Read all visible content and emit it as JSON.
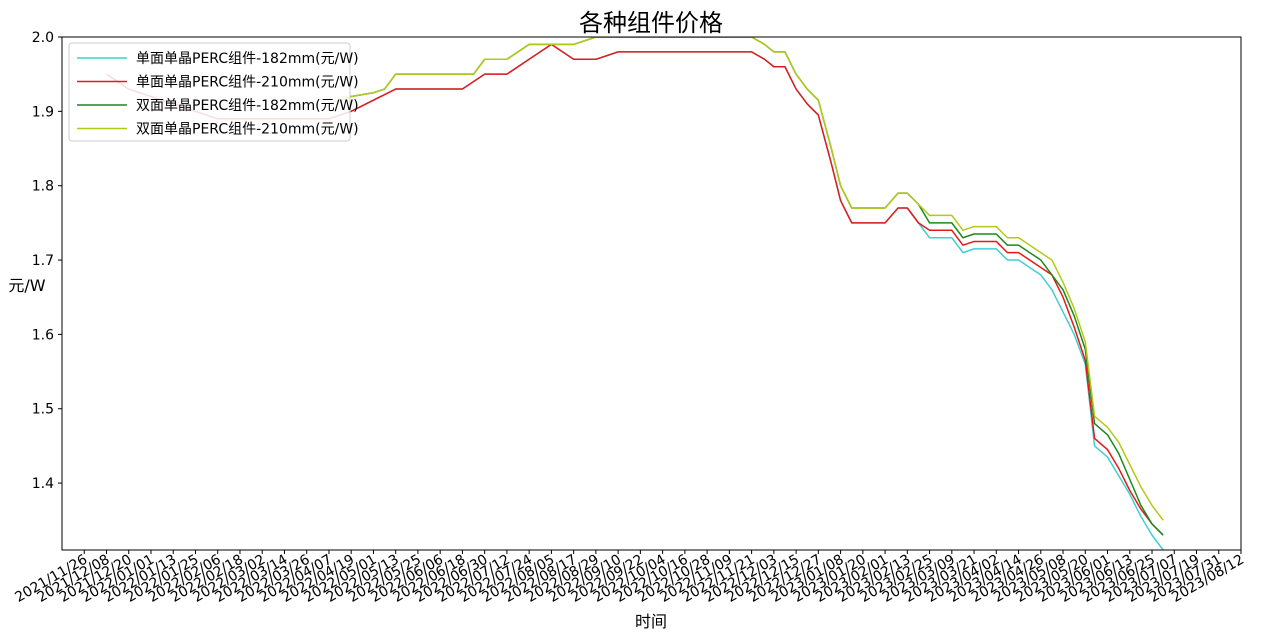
{
  "chart_data": {
    "type": "line",
    "title": "各种组件价格",
    "xlabel": "时间",
    "ylabel": "元/W",
    "ylim": [
      1.31,
      2.0
    ],
    "yticks": [
      1.4,
      1.5,
      1.6,
      1.7,
      1.8,
      1.9,
      2.0
    ],
    "ytick_labels": [
      "1.4",
      "1.5",
      "1.6",
      "1.7",
      "1.8",
      "1.9",
      "2.0"
    ],
    "xlim": [
      "2021-11-14",
      "2023-08-12"
    ],
    "xtick_labels": [
      "2021/11/26",
      "2021/12/08",
      "2021/12/20",
      "2022/01/01",
      "2022/01/13",
      "2022/01/25",
      "2022/02/06",
      "2022/02/18",
      "2022/03/02",
      "2022/03/14",
      "2022/03/26",
      "2022/04/07",
      "2022/04/19",
      "2022/05/01",
      "2022/05/13",
      "2022/05/25",
      "2022/06/06",
      "2022/06/18",
      "2022/06/30",
      "2022/07/12",
      "2022/07/24",
      "2022/08/05",
      "2022/08/17",
      "2022/08/29",
      "2022/09/10",
      "2022/09/22",
      "2022/10/04",
      "2022/10/16",
      "2022/10/28",
      "2022/11/09",
      "2022/11/21",
      "2022/12/03",
      "2022/12/15",
      "2022/12/27",
      "2023/01/08",
      "2023/01/20",
      "2023/02/01",
      "2023/02/13",
      "2023/02/25",
      "2023/03/09",
      "2023/03/21",
      "2023/04/02",
      "2023/04/14",
      "2023/04/26",
      "2023/05/08",
      "2023/05/20",
      "2023/06/01",
      "2023/06/13",
      "2023/06/25",
      "2023/07/07",
      "2023/07/19",
      "2023/07/31",
      "2023/08/12"
    ],
    "grid": false,
    "legend_position": "upper-left",
    "series": [
      {
        "name": "单面单晶PERC组件-182mm(元/W)",
        "color": "#3fd0d4",
        "points": [
          [
            "2021-12-08",
            1.95
          ],
          [
            "2021-12-20",
            1.93
          ],
          [
            "2022-01-13",
            1.91
          ],
          [
            "2022-02-06",
            1.89
          ],
          [
            "2022-03-14",
            1.89
          ],
          [
            "2022-04-07",
            1.89
          ],
          [
            "2022-04-19",
            1.9
          ],
          [
            "2022-05-01",
            1.915
          ],
          [
            "2022-05-13",
            1.93
          ],
          [
            "2022-06-06",
            1.93
          ],
          [
            "2022-06-18",
            1.93
          ],
          [
            "2022-06-30",
            1.95
          ],
          [
            "2022-07-12",
            1.95
          ],
          [
            "2022-07-24",
            1.97
          ],
          [
            "2022-08-05",
            1.99
          ],
          [
            "2022-08-17",
            1.97
          ],
          [
            "2022-08-29",
            1.97
          ],
          [
            "2022-09-10",
            1.98
          ],
          [
            "2022-10-04",
            1.98
          ],
          [
            "2022-11-21",
            1.98
          ],
          [
            "2022-11-28",
            1.97
          ],
          [
            "2022-12-03",
            1.96
          ],
          [
            "2022-12-09",
            1.96
          ],
          [
            "2022-12-15",
            1.93
          ],
          [
            "2022-12-21",
            1.91
          ],
          [
            "2022-12-27",
            1.895
          ],
          [
            "2023-01-03",
            1.83
          ],
          [
            "2023-01-08",
            1.78
          ],
          [
            "2023-01-14",
            1.75
          ],
          [
            "2023-01-20",
            1.75
          ],
          [
            "2023-02-01",
            1.75
          ],
          [
            "2023-02-08",
            1.77
          ],
          [
            "2023-02-13",
            1.77
          ],
          [
            "2023-02-19",
            1.75
          ],
          [
            "2023-02-25",
            1.73
          ],
          [
            "2023-03-09",
            1.73
          ],
          [
            "2023-03-15",
            1.71
          ],
          [
            "2023-03-21",
            1.715
          ],
          [
            "2023-04-02",
            1.715
          ],
          [
            "2023-04-08",
            1.7
          ],
          [
            "2023-04-14",
            1.7
          ],
          [
            "2023-04-20",
            1.69
          ],
          [
            "2023-04-26",
            1.68
          ],
          [
            "2023-05-02",
            1.66
          ],
          [
            "2023-05-08",
            1.63
          ],
          [
            "2023-05-14",
            1.6
          ],
          [
            "2023-05-20",
            1.56
          ],
          [
            "2023-05-25",
            1.45
          ],
          [
            "2023-06-01",
            1.435
          ],
          [
            "2023-06-07",
            1.41
          ],
          [
            "2023-06-13",
            1.385
          ],
          [
            "2023-06-19",
            1.355
          ],
          [
            "2023-06-25",
            1.33
          ],
          [
            "2023-07-01",
            1.31
          ]
        ]
      },
      {
        "name": "单面单晶PERC组件-210mm(元/W)",
        "color": "#e31a1c",
        "points": [
          [
            "2021-12-08",
            1.95
          ],
          [
            "2021-12-20",
            1.93
          ],
          [
            "2022-01-13",
            1.91
          ],
          [
            "2022-02-06",
            1.89
          ],
          [
            "2022-03-14",
            1.89
          ],
          [
            "2022-04-07",
            1.89
          ],
          [
            "2022-04-19",
            1.9
          ],
          [
            "2022-05-01",
            1.915
          ],
          [
            "2022-05-13",
            1.93
          ],
          [
            "2022-06-06",
            1.93
          ],
          [
            "2022-06-18",
            1.93
          ],
          [
            "2022-06-30",
            1.95
          ],
          [
            "2022-07-12",
            1.95
          ],
          [
            "2022-07-24",
            1.97
          ],
          [
            "2022-08-05",
            1.99
          ],
          [
            "2022-08-17",
            1.97
          ],
          [
            "2022-08-29",
            1.97
          ],
          [
            "2022-09-10",
            1.98
          ],
          [
            "2022-10-04",
            1.98
          ],
          [
            "2022-11-21",
            1.98
          ],
          [
            "2022-11-28",
            1.97
          ],
          [
            "2022-12-03",
            1.96
          ],
          [
            "2022-12-09",
            1.96
          ],
          [
            "2022-12-15",
            1.93
          ],
          [
            "2022-12-21",
            1.91
          ],
          [
            "2022-12-27",
            1.895
          ],
          [
            "2023-01-03",
            1.83
          ],
          [
            "2023-01-08",
            1.78
          ],
          [
            "2023-01-14",
            1.75
          ],
          [
            "2023-01-20",
            1.75
          ],
          [
            "2023-02-01",
            1.75
          ],
          [
            "2023-02-08",
            1.77
          ],
          [
            "2023-02-13",
            1.77
          ],
          [
            "2023-02-19",
            1.75
          ],
          [
            "2023-02-25",
            1.74
          ],
          [
            "2023-03-09",
            1.74
          ],
          [
            "2023-03-15",
            1.72
          ],
          [
            "2023-03-21",
            1.725
          ],
          [
            "2023-04-02",
            1.725
          ],
          [
            "2023-04-08",
            1.71
          ],
          [
            "2023-04-14",
            1.71
          ],
          [
            "2023-04-20",
            1.7
          ],
          [
            "2023-04-26",
            1.69
          ],
          [
            "2023-05-02",
            1.68
          ],
          [
            "2023-05-08",
            1.65
          ],
          [
            "2023-05-14",
            1.61
          ],
          [
            "2023-05-20",
            1.565
          ],
          [
            "2023-05-25",
            1.46
          ],
          [
            "2023-06-01",
            1.445
          ],
          [
            "2023-06-07",
            1.42
          ],
          [
            "2023-06-13",
            1.39
          ],
          [
            "2023-06-19",
            1.365
          ],
          [
            "2023-06-25",
            1.345
          ],
          [
            "2023-07-01",
            1.33
          ]
        ]
      },
      {
        "name": "双面单晶PERC组件-182mm(元/W)",
        "color": "#1a8a1a",
        "points": [
          [
            "2022-04-07",
            1.91
          ],
          [
            "2022-04-19",
            1.92
          ],
          [
            "2022-05-01",
            1.925
          ],
          [
            "2022-05-07",
            1.93
          ],
          [
            "2022-05-13",
            1.95
          ],
          [
            "2022-06-06",
            1.95
          ],
          [
            "2022-06-18",
            1.95
          ],
          [
            "2022-06-24",
            1.95
          ],
          [
            "2022-06-30",
            1.97
          ],
          [
            "2022-07-12",
            1.97
          ],
          [
            "2022-07-24",
            1.99
          ],
          [
            "2022-08-17",
            1.99
          ],
          [
            "2022-08-29",
            2.0
          ],
          [
            "2022-09-10",
            2.0
          ],
          [
            "2022-10-04",
            2.0
          ],
          [
            "2022-11-21",
            2.0
          ],
          [
            "2022-11-28",
            1.99
          ],
          [
            "2022-12-03",
            1.98
          ],
          [
            "2022-12-09",
            1.98
          ],
          [
            "2022-12-15",
            1.95
          ],
          [
            "2022-12-21",
            1.93
          ],
          [
            "2022-12-27",
            1.915
          ],
          [
            "2023-01-03",
            1.85
          ],
          [
            "2023-01-08",
            1.8
          ],
          [
            "2023-01-14",
            1.77
          ],
          [
            "2023-01-20",
            1.77
          ],
          [
            "2023-02-01",
            1.77
          ],
          [
            "2023-02-08",
            1.79
          ],
          [
            "2023-02-13",
            1.79
          ],
          [
            "2023-02-19",
            1.775
          ],
          [
            "2023-02-25",
            1.75
          ],
          [
            "2023-03-09",
            1.75
          ],
          [
            "2023-03-15",
            1.73
          ],
          [
            "2023-03-21",
            1.735
          ],
          [
            "2023-04-02",
            1.735
          ],
          [
            "2023-04-08",
            1.72
          ],
          [
            "2023-04-14",
            1.72
          ],
          [
            "2023-04-20",
            1.71
          ],
          [
            "2023-04-26",
            1.7
          ],
          [
            "2023-05-02",
            1.68
          ],
          [
            "2023-05-08",
            1.66
          ],
          [
            "2023-05-14",
            1.625
          ],
          [
            "2023-05-20",
            1.58
          ],
          [
            "2023-05-25",
            1.48
          ],
          [
            "2023-06-01",
            1.465
          ],
          [
            "2023-06-07",
            1.44
          ],
          [
            "2023-06-13",
            1.405
          ],
          [
            "2023-06-19",
            1.37
          ],
          [
            "2023-06-25",
            1.345
          ],
          [
            "2023-07-01",
            1.33
          ]
        ]
      },
      {
        "name": "双面单晶PERC组件-210mm(元/W)",
        "color": "#b5c81a",
        "points": [
          [
            "2022-04-07",
            1.91
          ],
          [
            "2022-04-19",
            1.92
          ],
          [
            "2022-05-01",
            1.925
          ],
          [
            "2022-05-07",
            1.93
          ],
          [
            "2022-05-13",
            1.95
          ],
          [
            "2022-06-06",
            1.95
          ],
          [
            "2022-06-18",
            1.95
          ],
          [
            "2022-06-24",
            1.95
          ],
          [
            "2022-06-30",
            1.97
          ],
          [
            "2022-07-12",
            1.97
          ],
          [
            "2022-07-24",
            1.99
          ],
          [
            "2022-08-17",
            1.99
          ],
          [
            "2022-08-29",
            2.0
          ],
          [
            "2022-09-10",
            2.0
          ],
          [
            "2022-10-04",
            2.0
          ],
          [
            "2022-11-21",
            2.0
          ],
          [
            "2022-11-28",
            1.99
          ],
          [
            "2022-12-03",
            1.98
          ],
          [
            "2022-12-09",
            1.98
          ],
          [
            "2022-12-15",
            1.95
          ],
          [
            "2022-12-21",
            1.93
          ],
          [
            "2022-12-27",
            1.915
          ],
          [
            "2023-01-03",
            1.85
          ],
          [
            "2023-01-08",
            1.8
          ],
          [
            "2023-01-14",
            1.77
          ],
          [
            "2023-01-20",
            1.77
          ],
          [
            "2023-02-01",
            1.77
          ],
          [
            "2023-02-08",
            1.79
          ],
          [
            "2023-02-13",
            1.79
          ],
          [
            "2023-02-19",
            1.775
          ],
          [
            "2023-02-25",
            1.76
          ],
          [
            "2023-03-09",
            1.76
          ],
          [
            "2023-03-15",
            1.74
          ],
          [
            "2023-03-21",
            1.745
          ],
          [
            "2023-04-02",
            1.745
          ],
          [
            "2023-04-08",
            1.73
          ],
          [
            "2023-04-14",
            1.73
          ],
          [
            "2023-04-20",
            1.72
          ],
          [
            "2023-04-26",
            1.71
          ],
          [
            "2023-05-02",
            1.7
          ],
          [
            "2023-05-08",
            1.67
          ],
          [
            "2023-05-14",
            1.635
          ],
          [
            "2023-05-20",
            1.59
          ],
          [
            "2023-05-25",
            1.49
          ],
          [
            "2023-06-01",
            1.475
          ],
          [
            "2023-06-07",
            1.455
          ],
          [
            "2023-06-13",
            1.425
          ],
          [
            "2023-06-19",
            1.395
          ],
          [
            "2023-06-25",
            1.37
          ],
          [
            "2023-07-01",
            1.35
          ]
        ]
      }
    ]
  }
}
